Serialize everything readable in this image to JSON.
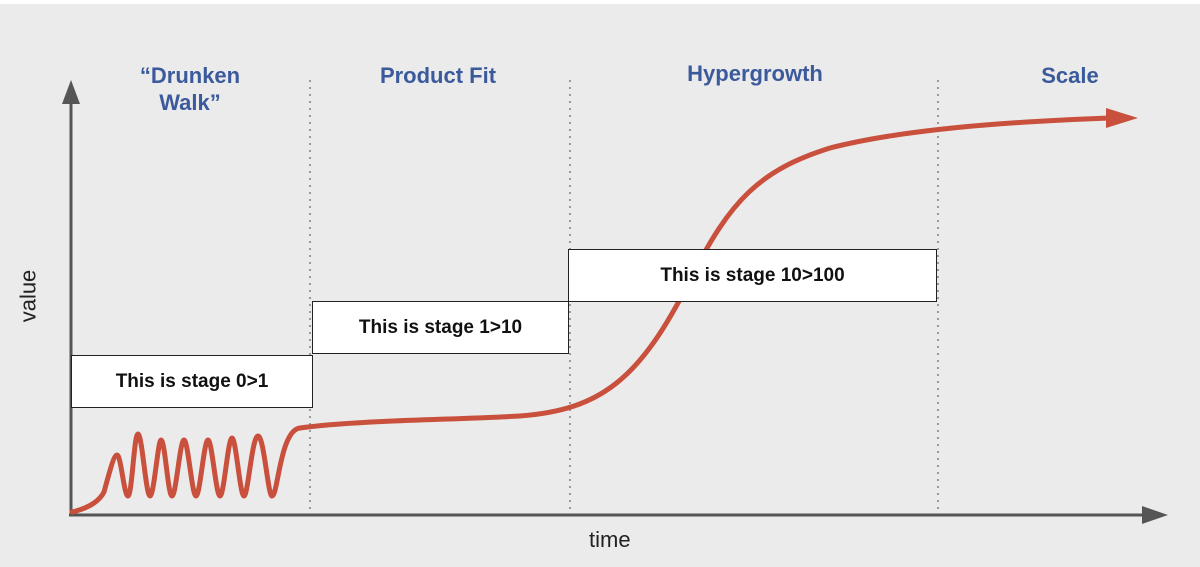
{
  "phases": [
    {
      "label": "“Drunken\nWalk”"
    },
    {
      "label": "Product Fit"
    },
    {
      "label": "Hypergrowth"
    },
    {
      "label": "Scale"
    }
  ],
  "stages": [
    {
      "label": "This is stage 0>1"
    },
    {
      "label": "This is stage 1>10"
    },
    {
      "label": "This is stage 10>100"
    }
  ],
  "axes": {
    "x_label": "time",
    "y_label": "value"
  },
  "colors": {
    "curve": "#c9503d",
    "phase_text": "#3b5a9c",
    "axis": "#555555",
    "divider": "#9a9a9a",
    "background": "#ebebeb"
  }
}
